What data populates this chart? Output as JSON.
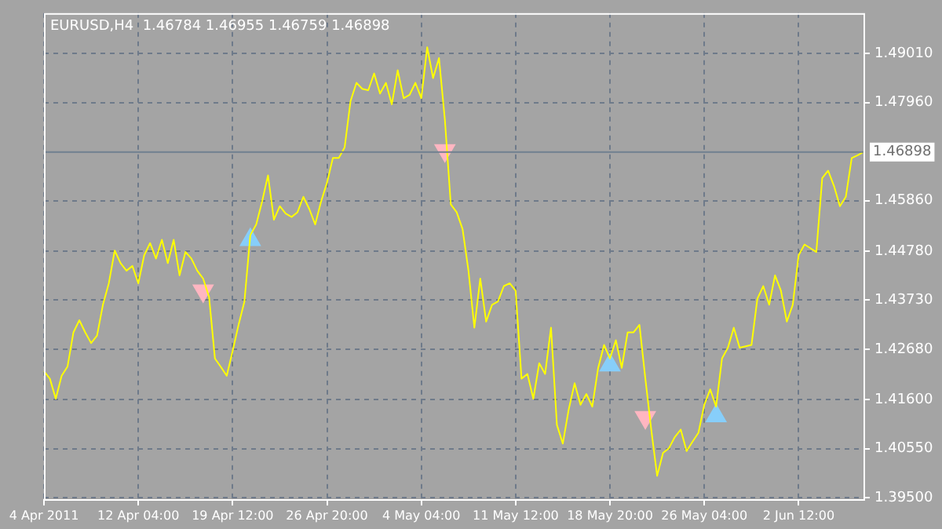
{
  "chart_data": {
    "type": "line",
    "title": "EURUSD,H4  1.46784 1.46955 1.46759 1.46898",
    "categories": [
      "4 Apr 2011",
      null,
      null,
      null,
      null,
      null,
      null,
      null,
      null,
      null,
      null,
      null,
      null,
      null,
      null,
      null,
      "12 Apr 04:00",
      null,
      null,
      null,
      null,
      null,
      null,
      null,
      null,
      null,
      null,
      null,
      null,
      null,
      null,
      null,
      "19 Apr 12:00",
      null,
      null,
      null,
      null,
      null,
      null,
      null,
      null,
      null,
      null,
      null,
      null,
      null,
      null,
      null,
      "26 Apr 20:00",
      null,
      null,
      null,
      null,
      null,
      null,
      null,
      null,
      null,
      null,
      null,
      null,
      null,
      null,
      null,
      "4 May 04:00",
      null,
      null,
      null,
      null,
      null,
      null,
      null,
      null,
      null,
      null,
      null,
      null,
      null,
      null,
      null,
      "11 May 12:00",
      null,
      null,
      null,
      null,
      null,
      null,
      null,
      null,
      null,
      null,
      null,
      null,
      null,
      null,
      null,
      "18 May 20:00",
      null,
      null,
      null,
      null,
      null,
      null,
      null,
      null,
      null,
      null,
      null,
      null,
      null,
      null,
      null,
      "26 May 04:00",
      null,
      null,
      null,
      null,
      null,
      null,
      null,
      null,
      null,
      null,
      null,
      null,
      null,
      null,
      null,
      "2 Jun 12:00",
      null,
      null,
      null,
      null,
      null,
      null,
      null,
      null,
      null,
      null,
      null
    ],
    "ylim": [
      1.3947,
      1.4987
    ],
    "yticks": [
      {
        "value": 1.4901,
        "label": "1.49010"
      },
      {
        "value": 1.4796,
        "label": "1.47960"
      },
      {
        "value": 1.4586,
        "label": "1.45860"
      },
      {
        "value": 1.4478,
        "label": "1.44780"
      },
      {
        "value": 1.4373,
        "label": "1.43730"
      },
      {
        "value": 1.4268,
        "label": "1.42680"
      },
      {
        "value": 1.416,
        "label": "1.41600"
      },
      {
        "value": 1.4055,
        "label": "1.40550"
      },
      {
        "value": 1.395,
        "label": "1.39500"
      }
    ],
    "grid": true,
    "ref_lines": [
      {
        "axis": "y",
        "value": 1.46898,
        "label": "1.46898",
        "color": "#708090"
      }
    ],
    "series": [
      {
        "color": "#ffff00",
        "values": [
          1.4221,
          1.4205,
          1.4162,
          1.4211,
          1.4231,
          1.4304,
          1.433,
          1.4304,
          1.4281,
          1.4297,
          1.4363,
          1.4409,
          1.4479,
          1.4452,
          1.4436,
          1.4446,
          1.4409,
          1.4469,
          1.4495,
          1.4462,
          1.4502,
          1.4452,
          1.4502,
          1.4426,
          1.4476,
          1.4462,
          1.4436,
          1.4419,
          1.438,
          1.4248,
          1.423,
          1.4211,
          1.4264,
          1.432,
          1.437,
          1.4512,
          1.4535,
          1.4584,
          1.464,
          1.4545,
          1.4574,
          1.4558,
          1.4551,
          1.4561,
          1.4594,
          1.4568,
          1.4535,
          1.4584,
          1.4624,
          1.4677,
          1.4677,
          1.47,
          1.4799,
          1.4838,
          1.4825,
          1.4822,
          1.4858,
          1.4815,
          1.4838,
          1.4792,
          1.4865,
          1.4805,
          1.4812,
          1.4838,
          1.4805,
          1.4914,
          1.4848,
          1.4891,
          1.4759,
          1.4578,
          1.4561,
          1.4525,
          1.4436,
          1.4314,
          1.4419,
          1.4327,
          1.4363,
          1.437,
          1.4403,
          1.4409,
          1.4393,
          1.4205,
          1.4215,
          1.4162,
          1.4238,
          1.4215,
          1.4314,
          1.4106,
          1.4066,
          1.4139,
          1.4195,
          1.4149,
          1.4172,
          1.4145,
          1.4228,
          1.4277,
          1.4248,
          1.4287,
          1.4228,
          1.4304,
          1.4304,
          1.432,
          1.4205,
          1.4096,
          1.3997,
          1.4046,
          1.4056,
          1.408,
          1.4096,
          1.405,
          1.407,
          1.4089,
          1.4149,
          1.4182,
          1.4145,
          1.4248,
          1.4271,
          1.4314,
          1.4271,
          1.4274,
          1.4277,
          1.4376,
          1.4403,
          1.4363,
          1.4426,
          1.4393,
          1.4327,
          1.4363,
          1.4469,
          1.4492,
          1.4484,
          1.4476,
          1.4634,
          1.465,
          1.4617,
          1.4574,
          1.4594,
          1.4677,
          1.4683,
          1.469
        ]
      },
      {
        "type": "scatter",
        "marker": "triangle",
        "color": "#ffb6c1",
        "values": [
          null,
          null,
          null,
          null,
          null,
          null,
          null,
          null,
          null,
          null,
          null,
          null,
          null,
          null,
          null,
          null,
          null,
          null,
          null,
          null,
          null,
          null,
          null,
          null,
          null,
          null,
          null,
          1.4393,
          null,
          null,
          null,
          null,
          null,
          null,
          null,
          null,
          null,
          null,
          null,
          null,
          null,
          null,
          null,
          null,
          null,
          null,
          null,
          null,
          null,
          null,
          null,
          null,
          null,
          null,
          null,
          null,
          null,
          null,
          null,
          null,
          null,
          null,
          null,
          null,
          null,
          null,
          null,
          null,
          1.4693,
          null,
          null,
          null,
          null,
          null,
          null,
          null,
          null,
          null,
          null,
          null,
          null,
          null,
          null,
          null,
          null,
          null,
          null,
          null,
          null,
          null,
          null,
          null,
          null,
          null,
          null,
          null,
          null,
          null,
          null,
          null,
          null,
          null,
          1.4122,
          null,
          null,
          null,
          null,
          null,
          null,
          null,
          null,
          null,
          null,
          null,
          null,
          null,
          null,
          null,
          null,
          null,
          null,
          null,
          null,
          null,
          null,
          null,
          null,
          null,
          null,
          null,
          null,
          null,
          null,
          null,
          null,
          null,
          null,
          null,
          null,
          null
        ]
      },
      {
        "type": "scatter",
        "marker": "triangle",
        "color": "#87cefa",
        "values": [
          null,
          null,
          null,
          null,
          null,
          null,
          null,
          null,
          null,
          null,
          null,
          null,
          null,
          null,
          null,
          null,
          null,
          null,
          null,
          null,
          null,
          null,
          null,
          null,
          null,
          null,
          null,
          null,
          null,
          null,
          null,
          null,
          null,
          null,
          null,
          1.4502,
          null,
          null,
          null,
          null,
          null,
          null,
          null,
          null,
          null,
          null,
          null,
          null,
          null,
          null,
          null,
          null,
          null,
          null,
          null,
          null,
          null,
          null,
          null,
          null,
          null,
          null,
          null,
          null,
          null,
          null,
          null,
          null,
          null,
          null,
          null,
          null,
          null,
          null,
          null,
          null,
          null,
          null,
          null,
          null,
          null,
          null,
          null,
          null,
          null,
          null,
          null,
          null,
          null,
          null,
          null,
          null,
          null,
          null,
          null,
          null,
          1.4234,
          null,
          null,
          null,
          null,
          null,
          null,
          null,
          null,
          null,
          null,
          null,
          null,
          null,
          null,
          null,
          null,
          null,
          1.4125,
          null,
          null,
          null,
          null,
          null,
          null,
          null,
          null,
          null,
          null,
          null,
          null,
          null,
          null,
          null,
          null,
          null,
          null,
          null,
          null,
          null,
          null,
          null,
          null,
          null
        ]
      }
    ]
  }
}
